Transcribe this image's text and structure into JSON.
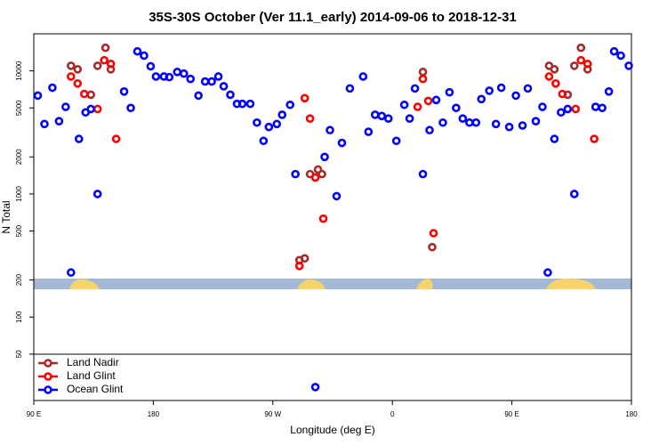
{
  "chart_data": {
    "type": "scatter",
    "title": "35S-30S October (Ver 11.1_early)   2014-09-06 to 2018-12-31",
    "xlabel": "Longitude (deg E)",
    "ylabel": "N Total",
    "log_y": true,
    "legend": "bottom-left",
    "xlim": [
      90,
      540
    ],
    "xticks": [
      {
        "value": 90,
        "label": "90 E"
      },
      {
        "value": 180,
        "label": "180"
      },
      {
        "value": 270,
        "label": "90 W"
      },
      {
        "value": 360,
        "label": "0"
      },
      {
        "value": 450,
        "label": "90 E"
      },
      {
        "value": 540,
        "label": "180"
      }
    ],
    "ylim": [
      21,
      20000
    ],
    "yticks": [
      50,
      100,
      200,
      500,
      1000,
      2000,
      5000,
      10000
    ],
    "series": [
      {
        "name": "Land Nadir",
        "color": "#a52a2a",
        "x": [
          118,
          123,
          133,
          138,
          144,
          148,
          290,
          294,
          298,
          304,
          307,
          383,
          390,
          478,
          482,
          492,
          497,
          502,
          507
        ],
        "values": [
          11000,
          10300,
          6400,
          11000,
          15400,
          10300,
          290,
          300,
          1450,
          1580,
          1450,
          9800,
          370,
          11000,
          10300,
          6400,
          11000,
          15400,
          10300
        ]
      },
      {
        "name": "Land Glint",
        "color": "#ff0000",
        "x": [
          118,
          123,
          128,
          138,
          143,
          148,
          152,
          290,
          294,
          298,
          302,
          308,
          379,
          383,
          387,
          391,
          478,
          483,
          488,
          498,
          502,
          507,
          512
        ],
        "values": [
          9000,
          7900,
          6500,
          4900,
          12200,
          11400,
          2800,
          260,
          6000,
          4100,
          1360,
          630,
          5100,
          8600,
          5700,
          480,
          9000,
          7900,
          6500,
          4900,
          12200,
          11400,
          2800
        ]
      },
      {
        "name": "Ocean Glint",
        "color": "#0000ff",
        "x": [
          93,
          98,
          104,
          109,
          114,
          118,
          124,
          129,
          133,
          138,
          158,
          163,
          168,
          173,
          178,
          182,
          188,
          192,
          198,
          203,
          208,
          214,
          219,
          224,
          229,
          233,
          238,
          243,
          247,
          253,
          258,
          263,
          267,
          273,
          277,
          283,
          287,
          302,
          309,
          313,
          318,
          322,
          328,
          338,
          342,
          347,
          352,
          357,
          363,
          369,
          373,
          377,
          383,
          388,
          393,
          398,
          403,
          408,
          413,
          418,
          423,
          427,
          433,
          438,
          442,
          448,
          453,
          458,
          462,
          468,
          473,
          477,
          482,
          487,
          492,
          497,
          513,
          518,
          523,
          527,
          532,
          538
        ],
        "values": [
          6300,
          3700,
          7300,
          3900,
          5100,
          230,
          2800,
          4600,
          4900,
          1000,
          6800,
          5000,
          14400,
          13300,
          10900,
          9000,
          9000,
          8900,
          9800,
          9500,
          8600,
          6300,
          8200,
          8200,
          9000,
          7500,
          6400,
          5400,
          5400,
          5400,
          3800,
          2700,
          3500,
          3700,
          4400,
          5300,
          1450,
          27,
          2000,
          3300,
          960,
          2600,
          7200,
          9000,
          3200,
          4400,
          4300,
          4100,
          2700,
          5300,
          4100,
          7200,
          1450,
          3300,
          5800,
          3800,
          6700,
          5000,
          4100,
          3800,
          3800,
          5900,
          6900,
          3700,
          7300,
          3500,
          6300,
          3600,
          7200,
          3900,
          5100,
          230,
          2800,
          4600,
          4900,
          1000,
          5100,
          5000,
          6800,
          14400,
          13300,
          11000
        ]
      }
    ]
  }
}
